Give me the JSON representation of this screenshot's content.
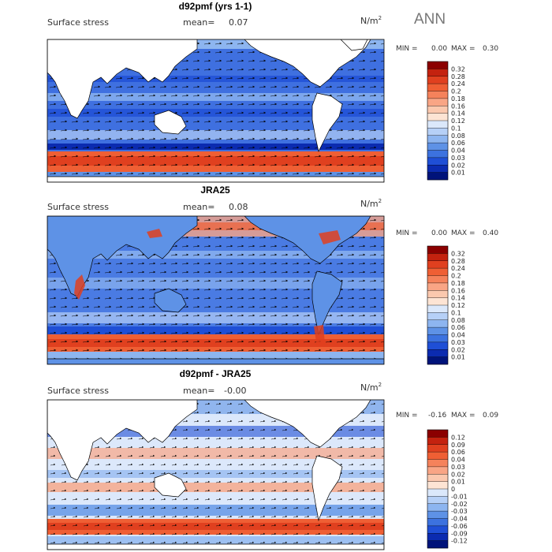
{
  "season": "ANN",
  "panels": [
    {
      "title": "d92pmf (yrs 1-1)",
      "field": "Surface stress",
      "mean_label": "mean=",
      "mean_value": "0.07",
      "units_base": "N/m",
      "units_exp": "2",
      "min_label": "MIN =",
      "min_value": "0.00",
      "max_label": "MAX =",
      "max_value": "0.30",
      "colorbar_levels": [
        "0.32",
        "0.28",
        "0.24",
        "0.2",
        "0.18",
        "0.16",
        "0.14",
        "0.12",
        "0.1",
        "0.08",
        "0.06",
        "0.04",
        "0.03",
        "0.02",
        "0.01"
      ],
      "colorbar_colors": [
        "#8b0000",
        "#c4220f",
        "#e0401f",
        "#ef5f34",
        "#f5825b",
        "#f9a585",
        "#fbc8ae",
        "#fde4d4",
        "#dbe8fb",
        "#b6d0f7",
        "#8db5f0",
        "#5e92e6",
        "#3c72df",
        "#1f4fd6",
        "#0b2bb0",
        "#00137a"
      ],
      "map_bg": "#3f70e0"
    },
    {
      "title": "JRA25",
      "field": "Surface stress",
      "mean_label": "mean=",
      "mean_value": "0.08",
      "units_base": "N/m",
      "units_exp": "2",
      "min_label": "MIN =",
      "min_value": "0.00",
      "max_label": "MAX =",
      "max_value": "0.40",
      "colorbar_levels": [
        "0.32",
        "0.28",
        "0.24",
        "0.2",
        "0.18",
        "0.16",
        "0.14",
        "0.12",
        "0.1",
        "0.08",
        "0.06",
        "0.04",
        "0.03",
        "0.02",
        "0.01"
      ],
      "colorbar_colors": [
        "#8b0000",
        "#c4220f",
        "#e0401f",
        "#ef5f34",
        "#f5825b",
        "#f9a585",
        "#fbc8ae",
        "#fde4d4",
        "#dbe8fb",
        "#b6d0f7",
        "#8db5f0",
        "#5e92e6",
        "#3c72df",
        "#1f4fd6",
        "#0b2bb0",
        "#00137a"
      ],
      "map_bg": "#4a7be3"
    },
    {
      "title": "d92pmf - JRA25",
      "field": "Surface stress",
      "mean_label": "mean=",
      "mean_value": "-0.00",
      "units_base": "N/m",
      "units_exp": "2",
      "min_label": "MIN =",
      "min_value": "-0.16",
      "max_label": "MAX =",
      "max_value": "0.09",
      "colorbar_levels": [
        "0.12",
        "0.09",
        "0.06",
        "0.04",
        "0.03",
        "0.02",
        "0.01",
        "0",
        "-0.01",
        "-0.02",
        "-0.03",
        "-0.04",
        "-0.06",
        "-0.09",
        "-0.12"
      ],
      "colorbar_colors": [
        "#8b0000",
        "#c4220f",
        "#e0401f",
        "#ef5f34",
        "#f5825b",
        "#f9a585",
        "#fbc8ae",
        "#fde4d4",
        "#dbe8fb",
        "#b6d0f7",
        "#8db5f0",
        "#5e92e6",
        "#3c72df",
        "#1f4fd6",
        "#0b2bb0",
        "#00137a"
      ],
      "map_bg": "#dce8fb"
    }
  ]
}
